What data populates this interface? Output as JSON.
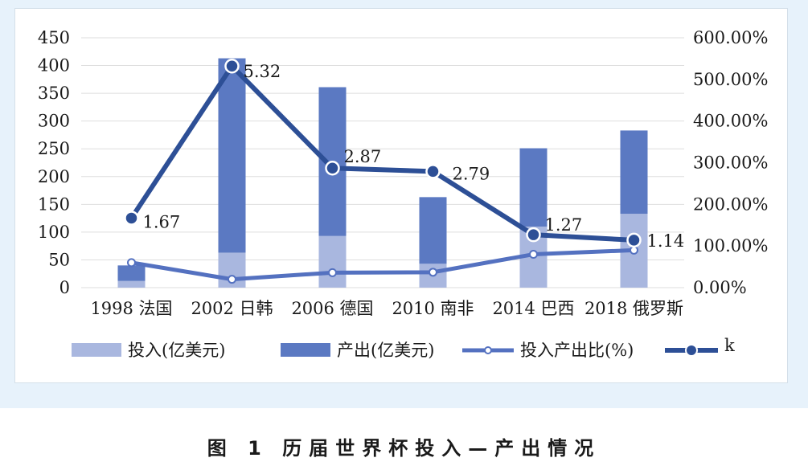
{
  "chart_data": {
    "type": "bar+line",
    "categories": [
      "1998 法国",
      "2002 日韩",
      "2006 德国",
      "2010 南非",
      "2014 巴西",
      "2018 俄罗斯"
    ],
    "series": [
      {
        "name": "投入(亿美元)",
        "kind": "stacked-bar",
        "axis": "left",
        "values": [
          12,
          63,
          93,
          43,
          110,
          133
        ]
      },
      {
        "name": "产出(亿美元)",
        "kind": "stacked-bar",
        "axis": "left",
        "values": [
          28,
          350,
          268,
          120,
          141,
          150
        ]
      },
      {
        "name": "投入产出比(%)",
        "kind": "line",
        "axis": "right",
        "values": [
          60,
          20,
          36,
          37,
          80,
          90
        ]
      },
      {
        "name": "k",
        "kind": "line",
        "axis": "right",
        "values": [
          167,
          532,
          287,
          279,
          127,
          114
        ]
      }
    ],
    "k_labels": [
      "1.67",
      "5.32",
      "2.87",
      "2.79",
      "1.27",
      "1.14"
    ],
    "left_axis": {
      "min": 0,
      "max": 450,
      "step": 50,
      "ticks": [
        "0",
        "50",
        "100",
        "150",
        "200",
        "250",
        "300",
        "350",
        "400",
        "450"
      ]
    },
    "right_axis": {
      "min": 0,
      "max": 600,
      "step": 100,
      "ticks": [
        "0.00%",
        "100.00%",
        "200.00%",
        "300.00%",
        "400.00%",
        "500.00%",
        "600.00%"
      ]
    },
    "grid": true,
    "legend_position": "bottom",
    "colors": {
      "input": "#a9b7df",
      "output": "#5b79c2",
      "ratio_line": "#5471c0",
      "k_line": "#2d4f96",
      "grid": "#dedede",
      "background": "#e7f2fb"
    }
  },
  "caption": "图 1   历届世界杯投入—产出情况"
}
